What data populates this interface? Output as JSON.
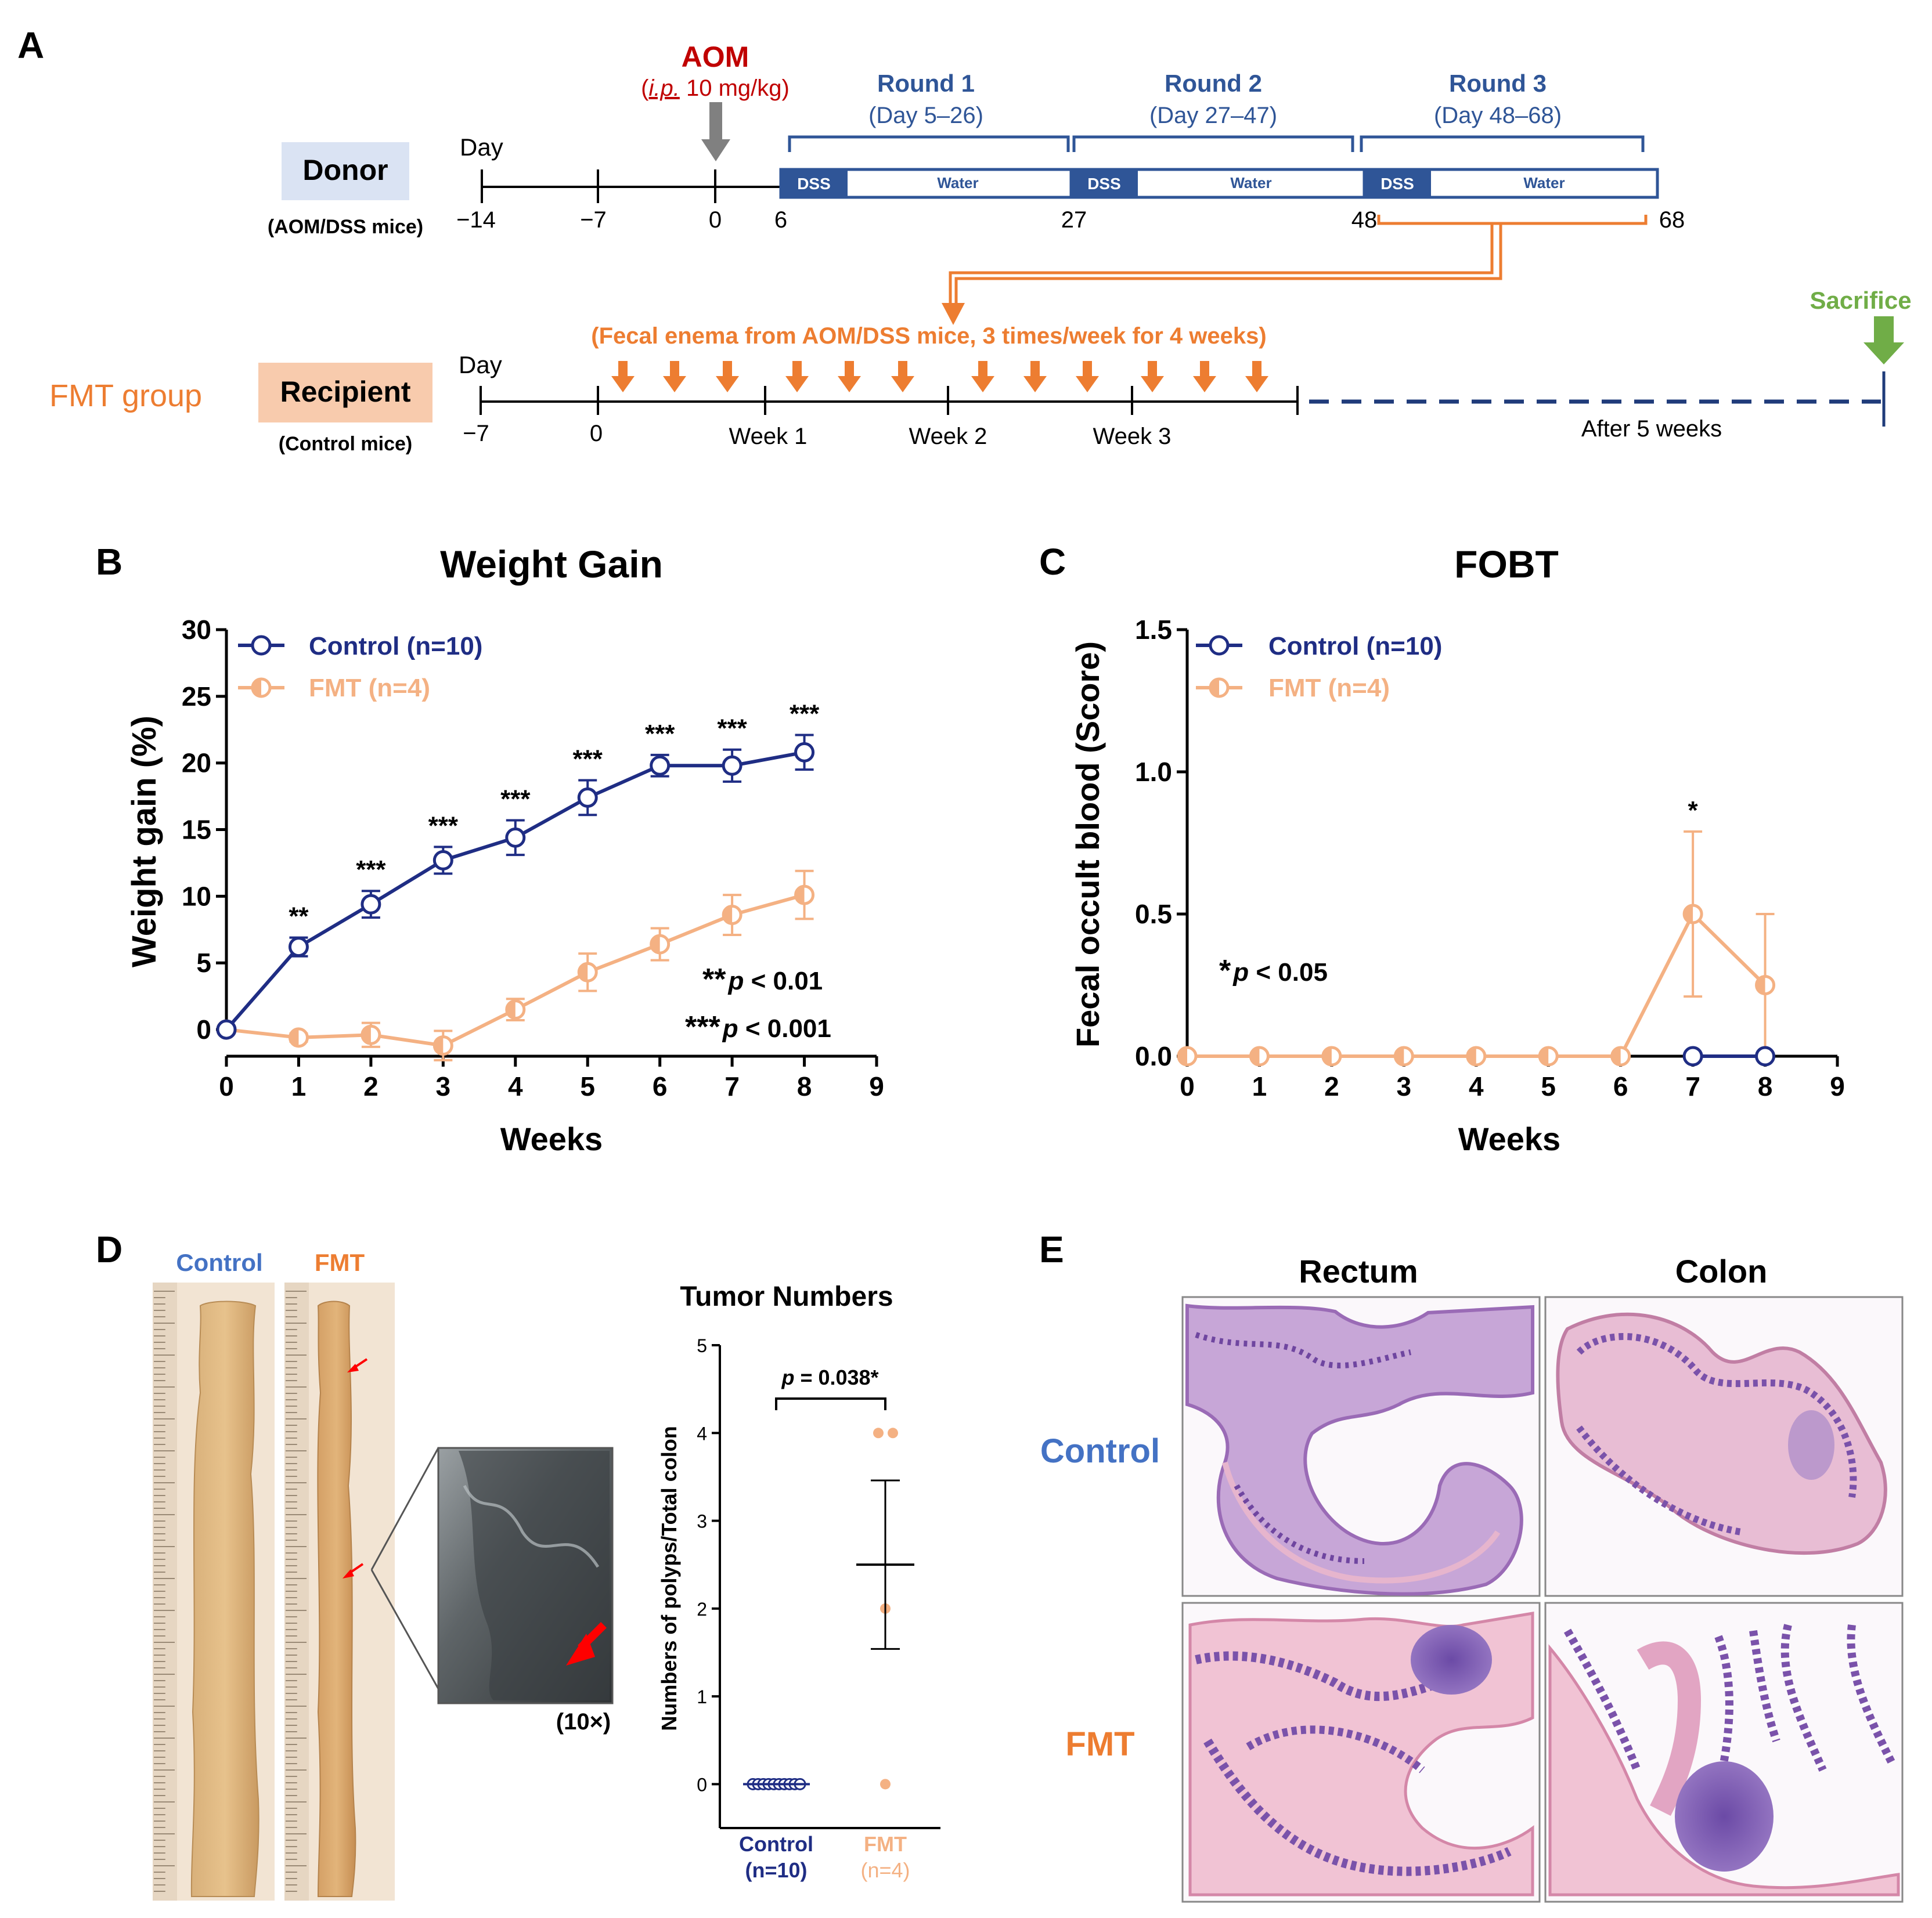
{
  "panel_labels": {
    "a": "A",
    "b": "B",
    "c": "C",
    "d": "D",
    "e": "E"
  },
  "colors": {
    "navy": "#1f2d84",
    "blue": "#2f5597",
    "orange": "#ed7d31",
    "light_orange": "#f4b183",
    "red": "#c00000",
    "green": "#70ad47",
    "gray": "#808080",
    "donor_box": "#dae3f3",
    "recipient_box": "#f8cbad"
  },
  "panel_a": {
    "aom_title": "AOM",
    "aom_dose_route": "i.p.",
    "aom_dose_rest": " 10 mg/kg)",
    "aom_dose_open": "(",
    "rounds": [
      {
        "title": "Round 1",
        "days": "(Day 5–26)"
      },
      {
        "title": "Round 2",
        "days": "(Day 27–47)"
      },
      {
        "title": "Round 3",
        "days": "(Day 48–68)"
      }
    ],
    "donor": {
      "label": "Donor",
      "sublabel": "(AOM/DSS mice)",
      "day_label": "Day",
      "ticks": [
        "−14",
        "−7",
        "0",
        "6",
        "27",
        "48",
        "68"
      ]
    },
    "segments": {
      "dss": "DSS",
      "water": "Water"
    },
    "fmt_group": "FMT group",
    "recipient": {
      "label": "Recipient",
      "sublabel": "(Control mice)",
      "day_label": "Day",
      "ticks": [
        "−7",
        "0",
        "Week 1",
        "Week 2",
        "Week 3"
      ]
    },
    "enema_text": "(Fecal enema from AOM/DSS mice, 3 times/week for 4 weeks)",
    "sacrifice": "Sacrifice",
    "after": "After 5 weeks"
  },
  "chart_data": [
    {
      "type": "line",
      "title": "Weight Gain",
      "xlabel": "Weeks",
      "ylabel": "Weight gain (%)",
      "xlim": [
        0,
        9
      ],
      "ylim": [
        -2,
        30
      ],
      "xticks": [
        0,
        1,
        2,
        3,
        4,
        5,
        6,
        7,
        8,
        9
      ],
      "yticks": [
        0,
        5,
        10,
        15,
        20,
        25,
        30
      ],
      "legend_position": "top-left",
      "series": [
        {
          "name": "Control (n=10)",
          "x": [
            0,
            1,
            2,
            3,
            4,
            5,
            6,
            7,
            8
          ],
          "values": [
            0,
            6.2,
            9.4,
            12.7,
            14.4,
            17.4,
            19.8,
            19.8,
            20.8
          ],
          "errors": [
            0,
            0.7,
            1.0,
            1.0,
            1.3,
            1.3,
            0.8,
            1.2,
            1.3
          ]
        },
        {
          "name": "FMT (n=4)",
          "x": [
            0,
            1,
            2,
            3,
            4,
            5,
            6,
            7,
            8
          ],
          "values": [
            0,
            -0.6,
            -0.4,
            -1.2,
            1.5,
            4.3,
            6.4,
            8.6,
            10.1
          ],
          "errors": [
            0,
            0.3,
            0.9,
            1.1,
            0.8,
            1.4,
            1.2,
            1.5,
            1.8
          ]
        }
      ],
      "significance": [
        {
          "x": 1,
          "label": "**"
        },
        {
          "x": 2,
          "label": "***"
        },
        {
          "x": 3,
          "label": "***"
        },
        {
          "x": 4,
          "label": "***"
        },
        {
          "x": 5,
          "label": "***"
        },
        {
          "x": 6,
          "label": "***"
        },
        {
          "x": 7,
          "label": "***"
        },
        {
          "x": 8,
          "label": "***"
        }
      ],
      "annotations": [
        {
          "stars": "**",
          "p": "p",
          "rest": " < 0.01"
        },
        {
          "stars": "***",
          "p": "p",
          "rest": " < 0.001"
        }
      ]
    },
    {
      "type": "line",
      "title": "FOBT",
      "xlabel": "Weeks",
      "ylabel": "Fecal occult blood (Score)",
      "xlim": [
        0,
        9
      ],
      "ylim": [
        0,
        1.5
      ],
      "xticks": [
        0,
        1,
        2,
        3,
        4,
        5,
        6,
        7,
        8,
        9
      ],
      "yticks": [
        0.0,
        0.5,
        1.0,
        1.5
      ],
      "ytick_labels": [
        "0.0",
        "0.5",
        "1.0",
        "1.5"
      ],
      "legend_position": "top-left",
      "series": [
        {
          "name": "Control (n=10)",
          "x": [
            7,
            8
          ],
          "values": [
            0,
            0
          ],
          "errors": [
            0,
            0
          ]
        },
        {
          "name": "FMT (n=4)",
          "x": [
            0,
            1,
            2,
            3,
            4,
            5,
            6,
            7,
            8
          ],
          "values": [
            0,
            0,
            0,
            0,
            0,
            0,
            0,
            0.5,
            0.25
          ],
          "errors": [
            0,
            0,
            0,
            0,
            0,
            0,
            0,
            0.29,
            0.25
          ]
        }
      ],
      "significance": [
        {
          "x": 7,
          "label": "*"
        }
      ],
      "annotations": [
        {
          "stars": "*",
          "p": "p",
          "rest": " < 0.05"
        }
      ]
    },
    {
      "type": "scatter",
      "title": "Tumor Numbers",
      "ylabel": "Numbers of polyps/Total colon",
      "categories": [
        "Control",
        "FMT"
      ],
      "category_sublabels": [
        "(n=10)",
        "(n=4)"
      ],
      "ylim": [
        -0.5,
        5
      ],
      "yticks": [
        0,
        1,
        2,
        3,
        4,
        5
      ],
      "series": [
        {
          "name": "Control",
          "values": [
            0,
            0,
            0,
            0,
            0,
            0,
            0,
            0,
            0,
            0
          ],
          "mean": 0,
          "sem": 0
        },
        {
          "name": "FMT",
          "values": [
            4,
            4,
            2,
            0
          ],
          "mean": 2.5,
          "sem": 0.96
        }
      ],
      "bracket_label": {
        "p": "p",
        "rest": " = 0.038*"
      }
    }
  ],
  "panel_d": {
    "photo_labels": [
      "Control",
      "FMT"
    ],
    "magnification": "(10×)"
  },
  "panel_e": {
    "columns": [
      "Rectum",
      "Colon"
    ],
    "rows": [
      "Control",
      "FMT"
    ]
  }
}
